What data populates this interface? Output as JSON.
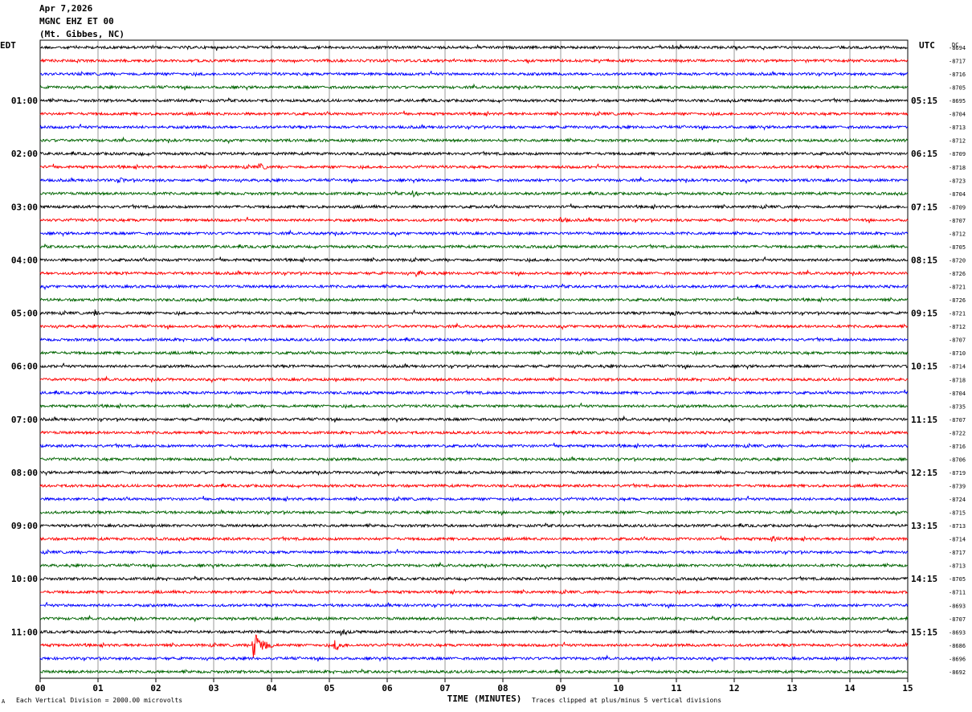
{
  "header": {
    "date": "Apr 7,2026",
    "station": "MGNC EHZ ET 00",
    "location": "(Mt. Gibbes, NC)"
  },
  "left_tz": "EDT",
  "right_tz": "UTC",
  "dc_label": "DC",
  "footer": {
    "scale_note": "Each Vertical Division = 2000.00 microvolts",
    "clip_note": "Traces clipped at plus/minus 5 vertical divisions",
    "corner_mark": "A"
  },
  "colors": {
    "cycle": [
      "#000000",
      "#ff0000",
      "#0000ff",
      "#006400"
    ],
    "grid": "#808080",
    "frame": "#000000"
  },
  "chart_data": {
    "type": "line",
    "xlabel": "TIME (MINUTES)",
    "xlim": [
      0,
      15
    ],
    "x_ticks": [
      "00",
      "01",
      "02",
      "03",
      "04",
      "05",
      "06",
      "07",
      "08",
      "09",
      "10",
      "11",
      "12",
      "13",
      "14",
      "15"
    ],
    "left_hour_labels": [
      "01:00",
      "02:00",
      "03:00",
      "04:00",
      "05:00",
      "06:00",
      "07:00",
      "08:00",
      "09:00",
      "10:00",
      "11:00"
    ],
    "right_hour_labels": [
      "05:15",
      "06:15",
      "07:15",
      "08:15",
      "09:15",
      "10:15",
      "11:15",
      "12:15",
      "13:15",
      "14:15",
      "15:15"
    ],
    "hour_label_rows": [
      4,
      8,
      12,
      16,
      20,
      24,
      28,
      32,
      36,
      40,
      44
    ],
    "dc_offsets": [
      -8694,
      -8717,
      -8716,
      -8705,
      -8695,
      -8704,
      -8713,
      -8712,
      -8709,
      -8718,
      -8723,
      -8704,
      -8709,
      -8707,
      -8712,
      -8705,
      -8720,
      -8726,
      -8721,
      -8726,
      -8721,
      -8712,
      -8707,
      -8710,
      -8714,
      -8718,
      -8704,
      -8735,
      -8707,
      -8722,
      -8716,
      -8706,
      -8719,
      -8739,
      -8724,
      -8715,
      -8713,
      -8714,
      -8717,
      -8713,
      -8705,
      -8711,
      -8693,
      -8707,
      -8693,
      -8686,
      -8696,
      -8692
    ],
    "traces_per_hour": 4,
    "minutes_per_trace": 15,
    "events": [
      {
        "row": 45,
        "minute": 3.68,
        "level": "large"
      },
      {
        "row": 45,
        "minute": 5.1,
        "level": "medium"
      },
      {
        "row": 44,
        "minute": 5.2,
        "level": "small"
      },
      {
        "row": 8,
        "minute": 1.65,
        "level": "small"
      },
      {
        "row": 9,
        "minute": 3.8,
        "level": "small"
      },
      {
        "row": 10,
        "minute": 1.35,
        "level": "small"
      },
      {
        "row": 11,
        "minute": 6.45,
        "level": "small"
      },
      {
        "row": 13,
        "minute": 9.0,
        "level": "small"
      },
      {
        "row": 17,
        "minute": 6.5,
        "level": "small"
      },
      {
        "row": 20,
        "minute": 0.95,
        "level": "small"
      },
      {
        "row": 20,
        "minute": 10.9,
        "level": "small"
      },
      {
        "row": 37,
        "minute": 12.65,
        "level": "small"
      }
    ]
  }
}
